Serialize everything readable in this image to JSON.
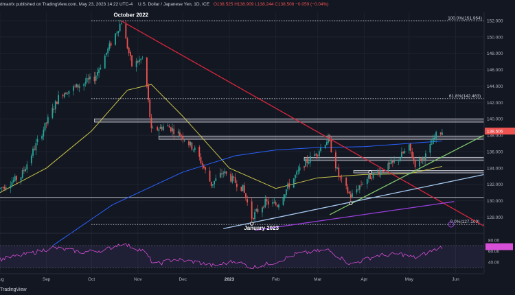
{
  "header": {
    "publisher": "dmanfx published on TradingView.com, May 23, 2023 14:22 UTC-4",
    "symbol": "U.S. Dollar / Japanese Yen, 1D, ICE",
    "ohlc": "O138.525  H138.909  L138.244  C138.506  −0.059 (−0.04%)"
  },
  "footer": {
    "brand": "TradingView"
  },
  "colors": {
    "background": "#131722",
    "up": "#26a69a",
    "down": "#ef5350",
    "ma_fast": "#c9c44a",
    "ma_slow": "#2962ff",
    "trend_green": "#7ec86a",
    "trend_blue": "#a6c8ee",
    "trend_purple": "#9c3fe0",
    "downtrend_red": "#d9263c",
    "rsi_line": "#d64fd6",
    "zone": "#b2b5be"
  },
  "chart_data": [
    {
      "type": "candlestick",
      "title": "",
      "price_axis": {
        "ticks": [
          "152.000",
          "150.000",
          "148.000",
          "146.000",
          "144.000",
          "142.000",
          "140.000",
          "138.000",
          "136.000",
          "134.000",
          "132.000",
          "130.000",
          "128.000"
        ],
        "range": [
          126.2,
          153.0
        ],
        "last_price": "138.506"
      },
      "time_axis": {
        "ticks": [
          "Aug",
          "Sep",
          "Oct",
          "Nov",
          "Dec",
          "2023",
          "Feb",
          "Mar",
          "Apr",
          "May",
          "Jun"
        ],
        "start": "2022-08-01",
        "end": "2023-06-20"
      },
      "annotations": [
        {
          "text": "October 2022",
          "date": "2022-10-21",
          "price": 151.95
        },
        {
          "text": "January 2023",
          "date": "2023-01-16",
          "price": 127.2
        }
      ],
      "levels": [
        {
          "label": "100.0%(151.954)",
          "price": 151.954,
          "style": "dotted"
        },
        {
          "label": "61.8%(142.463)",
          "price": 142.463,
          "style": "dotted"
        },
        {
          "label": "0.0%(127.109)",
          "price": 127.109,
          "style": "dotted"
        },
        {
          "label": "",
          "price": 130.4,
          "style": "solid"
        }
      ],
      "zones": [
        {
          "from": "2022-10-03",
          "to": "2023-06-20",
          "low": 139.6,
          "high": 140.0
        },
        {
          "from": "2022-11-15",
          "to": "2023-06-20",
          "low": 137.5,
          "high": 137.9
        },
        {
          "from": "2023-02-20",
          "to": "2023-06-20",
          "low": 134.9,
          "high": 135.3
        },
        {
          "from": "2023-03-25",
          "to": "2023-06-20",
          "low": 133.4,
          "high": 133.7
        }
      ],
      "trendlines": [
        {
          "name": "",
          "color_key": "downtrend_red",
          "from": [
            "2022-10-21",
            151.95
          ],
          "to": [
            "2023-06-20",
            126.9
          ]
        },
        {
          "name": "",
          "color_key": "trend_green",
          "from": [
            "2023-03-09",
            128.3
          ],
          "to": [
            "2023-06-20",
            138.0
          ]
        },
        {
          "name": "",
          "color_key": "trend_blue",
          "from": [
            "2022-12-28",
            126.6
          ],
          "to": [
            "2023-06-20",
            133.2
          ]
        },
        {
          "name": "",
          "color_key": "trend_purple",
          "from": [
            "2023-01-18",
            126.4
          ],
          "to": [
            "2023-05-31",
            129.9
          ]
        }
      ],
      "pivots": [
        {
          "date": "2023-01-16",
          "price": 127.2
        },
        {
          "date": "2023-03-23",
          "price": 129.7
        },
        {
          "date": "2023-04-05",
          "price": 133.5
        }
      ],
      "moving_averages": [
        {
          "name": "",
          "color_key": "ma_fast",
          "points": [
            [
              "2022-08-01",
              131.0
            ],
            [
              "2022-09-01",
              134.0
            ],
            [
              "2022-10-01",
              138.5
            ],
            [
              "2022-10-25",
              143.5
            ],
            [
              "2022-11-10",
              144.2
            ],
            [
              "2022-12-01",
              140.3
            ],
            [
              "2023-01-01",
              134.0
            ],
            [
              "2023-02-01",
              131.5
            ],
            [
              "2023-03-01",
              132.8
            ],
            [
              "2023-04-01",
              133.2
            ],
            [
              "2023-05-01",
              133.3
            ],
            [
              "2023-05-23",
              134.2
            ]
          ]
        },
        {
          "name": "",
          "color_key": "ma_slow",
          "points": [
            [
              "2022-09-05",
              124.5
            ],
            [
              "2022-10-15",
              129.5
            ],
            [
              "2022-12-01",
              133.5
            ],
            [
              "2023-01-05",
              135.5
            ],
            [
              "2023-02-01",
              136.2
            ],
            [
              "2023-03-01",
              136.5
            ],
            [
              "2023-04-01",
              136.6
            ],
            [
              "2023-05-01",
              137.0
            ],
            [
              "2023-05-23",
              137.3
            ]
          ]
        }
      ],
      "price_path": [
        [
          "2022-08-01",
          131.5
        ],
        [
          "2022-08-15",
          133.0
        ],
        [
          "2022-09-01",
          139.5
        ],
        [
          "2022-09-10",
          143.0
        ],
        [
          "2022-09-22",
          144.0
        ],
        [
          "2022-10-03",
          145.0
        ],
        [
          "2022-10-21",
          151.9
        ],
        [
          "2022-10-28",
          146.5
        ],
        [
          "2022-11-05",
          147.5
        ],
        [
          "2022-11-10",
          138.5
        ],
        [
          "2022-11-20",
          139.2
        ],
        [
          "2022-11-30",
          138.0
        ],
        [
          "2022-12-10",
          136.0
        ],
        [
          "2022-12-20",
          132.0
        ],
        [
          "2022-12-28",
          133.5
        ],
        [
          "2023-01-10",
          131.5
        ],
        [
          "2023-01-16",
          128.0
        ],
        [
          "2023-01-25",
          129.8
        ],
        [
          "2023-02-02",
          129.5
        ],
        [
          "2023-02-10",
          132.0
        ],
        [
          "2023-02-20",
          134.5
        ],
        [
          "2023-03-01",
          136.0
        ],
        [
          "2023-03-08",
          137.6
        ],
        [
          "2023-03-15",
          133.0
        ],
        [
          "2023-03-23",
          130.5
        ],
        [
          "2023-04-01",
          132.5
        ],
        [
          "2023-04-10",
          133.5
        ],
        [
          "2023-04-20",
          134.5
        ],
        [
          "2023-05-01",
          136.5
        ],
        [
          "2023-05-05",
          134.5
        ],
        [
          "2023-05-12",
          135.5
        ],
        [
          "2023-05-19",
          138.0
        ],
        [
          "2023-05-23",
          138.5
        ]
      ]
    },
    {
      "type": "line",
      "title": "",
      "y_axis": {
        "ticks": [
          "80.00",
          "60.00",
          "40.00"
        ],
        "range": [
          20,
          90
        ]
      },
      "band": [
        30,
        70
      ],
      "rsi_path": [
        [
          "2022-08-01",
          45
        ],
        [
          "2022-08-20",
          55
        ],
        [
          "2022-09-05",
          66
        ],
        [
          "2022-09-25",
          58
        ],
        [
          "2022-10-10",
          62
        ],
        [
          "2022-10-21",
          74
        ],
        [
          "2022-11-05",
          60
        ],
        [
          "2022-11-12",
          35
        ],
        [
          "2022-11-25",
          45
        ],
        [
          "2022-12-10",
          40
        ],
        [
          "2022-12-22",
          33
        ],
        [
          "2023-01-05",
          42
        ],
        [
          "2023-01-16",
          30
        ],
        [
          "2023-02-01",
          40
        ],
        [
          "2023-02-15",
          55
        ],
        [
          "2023-03-08",
          62
        ],
        [
          "2023-03-23",
          36
        ],
        [
          "2023-04-10",
          52
        ],
        [
          "2023-04-25",
          55
        ],
        [
          "2023-05-05",
          48
        ],
        [
          "2023-05-23",
          68
        ]
      ]
    }
  ]
}
